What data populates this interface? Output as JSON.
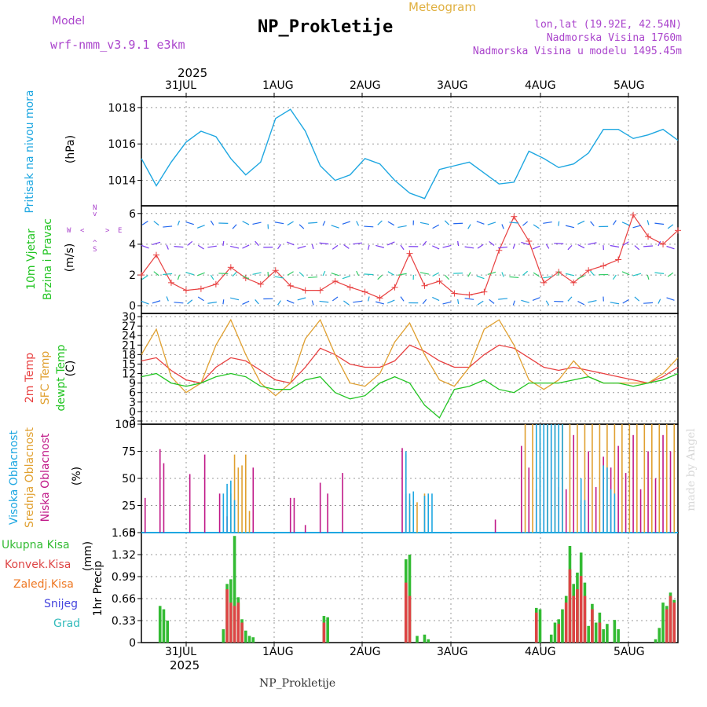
{
  "header": {
    "model_label": "Model",
    "model_name": "wrf-nmm_v3.9.1 e3km",
    "product": "Meteogram",
    "station": "NP_Prokletije",
    "coords": "lon,lat (19.92E, 42.54N)",
    "altitude": "Nadmorska Visina 1760m",
    "model_altitude": "Nadmorska Visina u modelu 1495.45m",
    "footer_station": "NP_Prokletije",
    "watermark": "made by Angel"
  },
  "colors": {
    "pressure": "#1ea7e1",
    "temp2m": "#e84040",
    "sfc": "#e0a030",
    "dewpt": "#22c422",
    "high": "#1ea7e1",
    "mid": "#e0a030",
    "low": "#c01888",
    "total": "#33bb33",
    "convective": "#dd4444",
    "frozen": "#ee7722",
    "snow": "#4444dd",
    "hail": "#33bbbb",
    "compass": "#aa44cc"
  },
  "time_axis": {
    "year": "2025",
    "days": [
      "31JUL",
      "1AUG",
      "2AUG",
      "3AUG",
      "4AUG",
      "5AUG"
    ],
    "start_hour": 0,
    "end_hour": 144
  },
  "wind_compass": {
    "north": "N",
    "east": "E",
    "west": "W",
    "south": "S",
    "arrow_left": "<",
    "arrow_right": ">",
    "arrow_up": "^",
    "arrow_down": "v"
  },
  "chart_data": [
    {
      "type": "line",
      "name": "pressure",
      "ylabel_main": "Pritisak na nivou mora",
      "unit": "(hPa)",
      "ylim": [
        1012.6,
        1018.6
      ],
      "yticks": [
        1014,
        1016,
        1018
      ],
      "x": [
        0,
        4,
        8,
        12,
        16,
        20,
        24,
        28,
        32,
        36,
        40,
        44,
        48,
        52,
        56,
        60,
        64,
        68,
        72,
        76,
        80,
        84,
        88,
        92,
        96,
        100,
        104,
        108,
        112,
        116,
        120,
        124,
        128,
        132,
        136,
        140,
        144
      ],
      "values": [
        1015.2,
        1013.7,
        1015.0,
        1016.1,
        1016.7,
        1016.4,
        1015.2,
        1014.3,
        1015.0,
        1017.4,
        1017.9,
        1016.7,
        1014.8,
        1014.0,
        1014.3,
        1015.2,
        1014.9,
        1014.0,
        1013.3,
        1013.0,
        1014.6,
        1014.8,
        1015.0,
        1014.4,
        1013.8,
        1013.9,
        1015.6,
        1015.2,
        1014.7,
        1014.9,
        1015.5,
        1016.8,
        1016.8,
        1016.3,
        1016.5,
        1016.8,
        1016.2
      ]
    },
    {
      "type": "line",
      "name": "wind",
      "ylabel_main": "10m Vjetar",
      "ylabel_sub": "Brzina i Pravac",
      "unit": "(m/s)",
      "ylim": [
        -0.5,
        6.5
      ],
      "yticks": [
        0,
        2,
        4,
        6
      ],
      "x": [
        0,
        4,
        8,
        12,
        16,
        20,
        24,
        28,
        32,
        36,
        40,
        44,
        48,
        52,
        56,
        60,
        64,
        68,
        72,
        76,
        80,
        84,
        88,
        92,
        96,
        100,
        104,
        108,
        112,
        116,
        120,
        124,
        128,
        132,
        136,
        140,
        144
      ],
      "values": [
        2.0,
        3.3,
        1.5,
        1.0,
        1.1,
        1.4,
        2.5,
        1.8,
        1.4,
        2.3,
        1.3,
        1.0,
        1.0,
        1.6,
        1.2,
        0.9,
        0.5,
        1.2,
        3.4,
        1.3,
        1.6,
        0.8,
        0.7,
        0.9,
        3.6,
        5.8,
        4.2,
        1.5,
        2.2,
        1.5,
        2.3,
        2.6,
        3.0,
        5.9,
        4.5,
        4.0,
        4.9
      ]
    },
    {
      "type": "line",
      "name": "temperature",
      "ylabel_main": "2m Temp",
      "ylabel_sub": "SFC Temp",
      "ylabel_sub2": "dewpt Temp",
      "unit": "(C)",
      "ylim": [
        -4,
        31
      ],
      "yticks": [
        -3,
        0,
        3,
        6,
        9,
        12,
        15,
        18,
        21,
        24,
        27,
        30
      ],
      "x": [
        0,
        4,
        8,
        12,
        16,
        20,
        24,
        28,
        32,
        36,
        40,
        44,
        48,
        52,
        56,
        60,
        64,
        68,
        72,
        76,
        80,
        84,
        88,
        92,
        96,
        100,
        104,
        108,
        112,
        116,
        120,
        124,
        128,
        132,
        136,
        140,
        144
      ],
      "series": [
        {
          "name": "2m Temp",
          "values": [
            16,
            17,
            13,
            10,
            9,
            14,
            17,
            16,
            13,
            10,
            9,
            14,
            20,
            18,
            15,
            14,
            14,
            16,
            21,
            19,
            16,
            14,
            14,
            18,
            21,
            20,
            17,
            14,
            13,
            14,
            13,
            12,
            11,
            10,
            9,
            11,
            14
          ]
        },
        {
          "name": "SFC Temp",
          "values": [
            18,
            26,
            11,
            6,
            9,
            21,
            29,
            18,
            9,
            5,
            9,
            23,
            29,
            18,
            9,
            8,
            12,
            22,
            28,
            18,
            10,
            8,
            14,
            26,
            29,
            21,
            10,
            7,
            10,
            16,
            11,
            9,
            9,
            9,
            9,
            12,
            17
          ]
        },
        {
          "name": "dewpt Temp",
          "values": [
            11,
            12,
            9,
            8,
            9,
            11,
            12,
            11,
            8,
            7,
            7,
            10,
            11,
            6,
            4,
            5,
            9,
            11,
            9,
            2,
            -2,
            7,
            8,
            10,
            7,
            6,
            9,
            9,
            9,
            10,
            11,
            9,
            9,
            8,
            9,
            10,
            12
          ]
        }
      ]
    },
    {
      "type": "bar",
      "name": "cloud_cover",
      "ylabel_main": "Visoka Oblacnost",
      "ylabel_sub": "Srednja Oblacnost",
      "ylabel_sub2": "Niska Oblacnost",
      "unit": "(%)",
      "ylim": [
        0,
        100
      ],
      "yticks": [
        0,
        25,
        50,
        75,
        100
      ],
      "series": [
        {
          "name": "Niska Oblacnost",
          "x": [
            1,
            5,
            6,
            13,
            17,
            21,
            23,
            30,
            40,
            41,
            44,
            48,
            50,
            54,
            70,
            71,
            95,
            102,
            104,
            106,
            108,
            110,
            112,
            114,
            116,
            118,
            120,
            122,
            124,
            126,
            128,
            130,
            132,
            134,
            136,
            138,
            140,
            142
          ],
          "values": [
            32,
            77,
            64,
            54,
            72,
            36,
            15,
            60,
            32,
            32,
            7,
            46,
            36,
            55,
            78,
            36,
            12,
            80,
            60,
            40,
            50,
            95,
            42,
            40,
            90,
            30,
            75,
            42,
            70,
            60,
            80,
            55,
            90,
            40,
            75,
            50,
            90,
            75
          ]
        },
        {
          "name": "Srednja Oblacnost",
          "x": [
            24,
            25,
            26,
            27,
            28,
            29,
            71,
            72,
            74,
            76,
            103,
            105,
            107,
            109,
            111,
            113,
            115,
            117,
            119,
            121,
            123,
            125,
            127,
            129,
            131,
            133,
            135,
            137,
            139,
            141,
            143
          ],
          "values": [
            36,
            72,
            60,
            62,
            72,
            20,
            72,
            30,
            28,
            36,
            100,
            100,
            100,
            100,
            100,
            100,
            100,
            100,
            100,
            100,
            100,
            100,
            100,
            100,
            100,
            100,
            100,
            100,
            100,
            100,
            100
          ]
        },
        {
          "name": "Visoka Oblacnost",
          "x": [
            22,
            23,
            24,
            25,
            71,
            72,
            73,
            76,
            77,
            78,
            106,
            107,
            108,
            109,
            110,
            111,
            112,
            113,
            118,
            119,
            124,
            125,
            126,
            127
          ],
          "values": [
            36,
            45,
            48,
            30,
            75,
            36,
            38,
            34,
            36,
            36,
            100,
            100,
            100,
            100,
            100,
            100,
            100,
            100,
            50,
            30,
            62,
            60,
            40,
            36
          ]
        }
      ]
    },
    {
      "type": "bar",
      "name": "precipitation",
      "legend": [
        "Ukupna Kisa",
        "Konvek.Kisa",
        "Zaledj.Kisa",
        "Snijeg",
        "Grad"
      ],
      "ylabel_main": "1hr Precip",
      "unit": "(mm)",
      "ylim": [
        0,
        1.65
      ],
      "yticks": [
        0,
        0.33,
        0.66,
        0.99,
        1.32,
        1.65
      ],
      "series": [
        {
          "name": "Ukupna Kisa",
          "x": [
            5,
            6,
            7,
            22,
            23,
            24,
            25,
            26,
            27,
            28,
            29,
            30,
            49,
            50,
            71,
            72,
            74,
            76,
            77,
            106,
            107,
            110,
            111,
            112,
            113,
            114,
            115,
            116,
            117,
            118,
            119,
            120,
            121,
            122,
            123,
            124,
            125,
            127,
            128,
            138,
            139,
            140,
            141,
            142,
            143
          ],
          "values": [
            0.55,
            0.5,
            0.33,
            0.2,
            0.88,
            0.95,
            1.6,
            0.68,
            0.35,
            0.18,
            0.1,
            0.08,
            0.4,
            0.38,
            1.25,
            1.32,
            0.1,
            0.12,
            0.05,
            0.52,
            0.5,
            0.12,
            0.3,
            0.35,
            0.5,
            0.7,
            1.45,
            0.88,
            1.05,
            1.35,
            0.9,
            0.25,
            0.58,
            0.3,
            0.45,
            0.2,
            0.28,
            0.34,
            0.2,
            0.05,
            0.22,
            0.6,
            0.55,
            0.75,
            0.64
          ]
        },
        {
          "name": "Konvek.Kisa",
          "x": [
            23,
            24,
            25,
            26,
            27,
            49,
            71,
            72,
            106,
            112,
            114,
            115,
            116,
            117,
            118,
            119,
            121,
            123,
            141,
            142,
            143
          ],
          "values": [
            0.8,
            0.6,
            0.55,
            0.6,
            0.3,
            0.3,
            0.9,
            0.7,
            0.45,
            0.28,
            0.6,
            1.1,
            0.7,
            0.8,
            1.0,
            0.7,
            0.5,
            0.3,
            0.5,
            0.7,
            0.6
          ]
        }
      ]
    }
  ]
}
